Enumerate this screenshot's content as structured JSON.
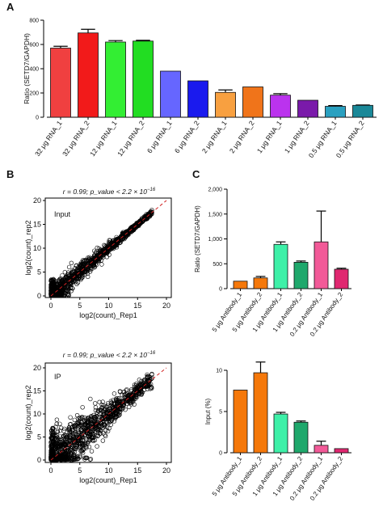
{
  "panel_labels": [
    "A",
    "B",
    "C"
  ],
  "chart_data": [
    {
      "panel": "A",
      "type": "bar",
      "ylabel": "Ratio (SETD7/GAPDH)",
      "ylim": [
        0,
        800
      ],
      "yticks": [
        0,
        200,
        400,
        600,
        800
      ],
      "ytick_labels": [
        "0",
        "200",
        "400",
        "600",
        "800"
      ],
      "categories": [
        "32 μg RNA_1",
        "32 μg RNA_2",
        "12 μg RNA_1",
        "12 μg RNA_2",
        "6 μg RNA_1",
        "6 μg RNA_2",
        "2 μg RNA_1",
        "2 μg RNA_2",
        "1 μg RNA_1",
        "1 μg RNA_2",
        "0.5 μg RNA_1",
        "0.5 μg RNA_2"
      ],
      "values": [
        570,
        695,
        620,
        628,
        380,
        300,
        205,
        250,
        182,
        140,
        90,
        98
      ],
      "errors": [
        15,
        30,
        12,
        6,
        0,
        0,
        20,
        0,
        12,
        0,
        6,
        3
      ],
      "colors": [
        "#f04040",
        "#f21a1a",
        "#33ee33",
        "#22dd22",
        "#6666ff",
        "#1a1aee",
        "#f8a040",
        "#f0741a",
        "#bb33ee",
        "#7a1aaa",
        "#2aa0c0",
        "#1a8898"
      ]
    },
    {
      "panel": "B",
      "type": "scatter",
      "annotation": "r = 0.99; p_value < 2.2 × 10",
      "annotation_exp": "−16",
      "inset_label": "Input",
      "xlabel": "log2(count)_Rep1",
      "ylabel": "log2(count)_rep2",
      "xlim": [
        0,
        20
      ],
      "ylim": [
        0,
        20
      ],
      "ticks": [
        0,
        5,
        10,
        15,
        20
      ],
      "tick_labels": [
        "0",
        "5",
        "10",
        "15",
        "20"
      ],
      "grid": false,
      "trend_line": "dashed red y = x"
    },
    {
      "panel": "B",
      "type": "scatter",
      "annotation": "r = 0.99; p_value < 2.2 × 10",
      "annotation_exp": "−16",
      "inset_label": "IP",
      "xlabel": "log2(count)_Rep1",
      "ylabel": "log2(count)_rep2",
      "xlim": [
        0,
        20
      ],
      "ylim": [
        0,
        20
      ],
      "ticks": [
        0,
        5,
        10,
        15,
        20
      ],
      "tick_labels": [
        "0",
        "5",
        "10",
        "15",
        "20"
      ],
      "grid": false,
      "trend_line": "dashed red y = x"
    },
    {
      "panel": "C",
      "type": "bar",
      "ylabel": "Ratio (SETD7/GAPDH)",
      "ylim": [
        0,
        2000
      ],
      "yticks": [
        0,
        500,
        1000,
        1500,
        2000
      ],
      "ytick_labels": [
        "0",
        "500",
        "1,000",
        "1,500",
        "2,000"
      ],
      "categories": [
        "5 μg Antibody_1",
        "5 μg Antibody_2",
        "1 μg Antibody_1",
        "1 μg Antibody_2",
        "0.2 μg Antibody_1",
        "0.2 μg Antibody_2"
      ],
      "values": [
        150,
        215,
        890,
        530,
        940,
        390
      ],
      "errors": [
        0,
        30,
        50,
        25,
        620,
        20
      ],
      "colors": [
        "#f5780a",
        "#f5780a",
        "#3ef0a8",
        "#1fa86c",
        "#f25a98",
        "#e02870"
      ]
    },
    {
      "panel": "C",
      "type": "bar",
      "ylabel": "Input (%)",
      "ylim": [
        0,
        10
      ],
      "yticks": [
        0,
        5,
        10
      ],
      "ytick_labels": [
        "0",
        "5",
        "10"
      ],
      "categories": [
        "5 μg Antibody_1",
        "5 μg Antibody_2",
        "1 μg Antibody_1",
        "1 μg Antibody_2",
        "0.2 μg Antibody_1",
        "0.2 μg Antibody_2"
      ],
      "values": [
        7.6,
        9.7,
        4.7,
        3.7,
        0.9,
        0.5
      ],
      "errors": [
        0,
        1.3,
        0.2,
        0.15,
        0.5,
        0
      ],
      "colors": [
        "#f5780a",
        "#f5780a",
        "#3ef0a8",
        "#1fa86c",
        "#f25a98",
        "#e02870"
      ]
    }
  ]
}
